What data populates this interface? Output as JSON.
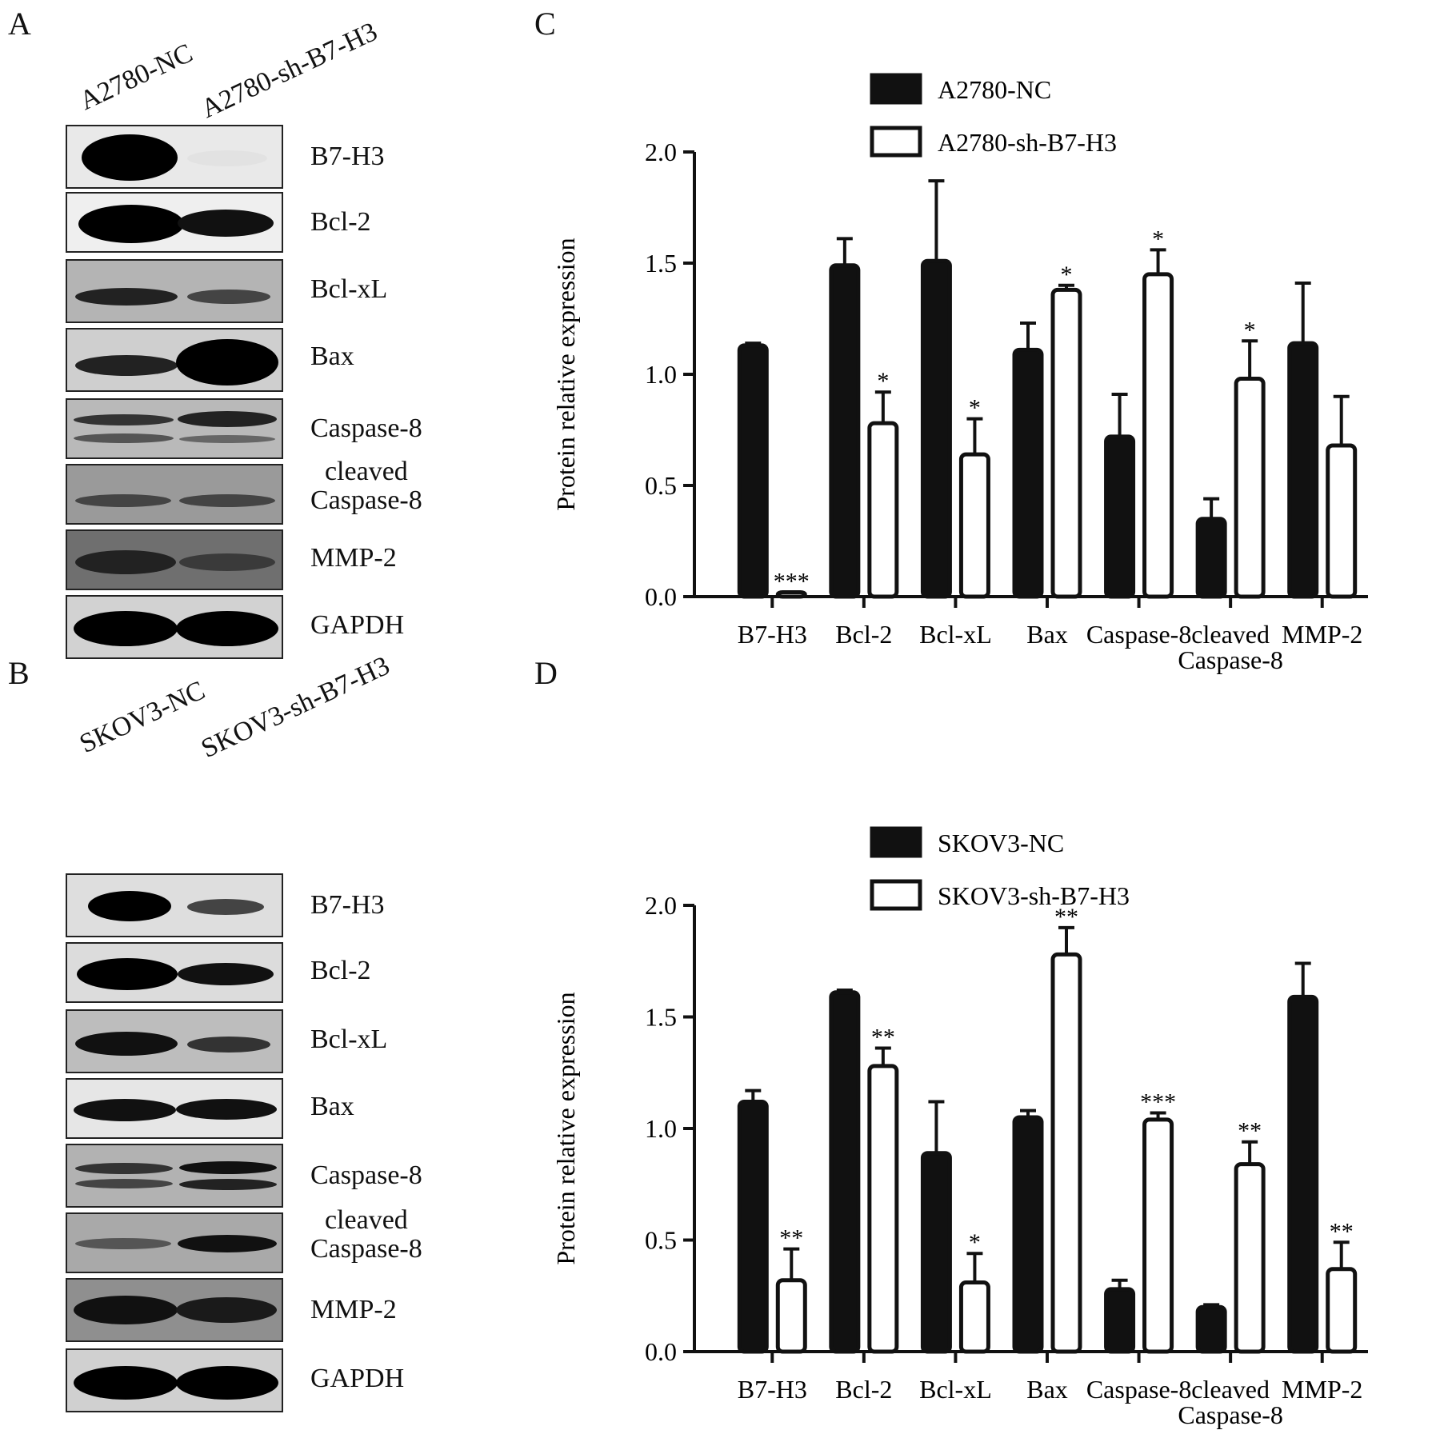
{
  "panels": {
    "A": {
      "letter": "A",
      "lanes": [
        "A2780-NC",
        "A2780-sh-B7-H3"
      ],
      "rows": [
        {
          "label": "B7-H3",
          "bg": "#e9e9e9"
        },
        {
          "label": "Bcl-2",
          "bg": "#efefef"
        },
        {
          "label": "Bcl-xL",
          "bg": "#b4b4b4"
        },
        {
          "label": "Bax",
          "bg": "#cfcfcf"
        },
        {
          "label": "Caspase-8",
          "bg": "#b9b9b9"
        },
        {
          "label": "cleaved\nCaspase-8",
          "bg": "#9a9a9a"
        },
        {
          "label": "MMP-2",
          "bg": "#6f6f6f"
        },
        {
          "label": "GAPDH",
          "bg": "#d2d2d2"
        }
      ]
    },
    "B": {
      "letter": "B",
      "lanes": [
        "SKOV3-NC",
        "SKOV3-sh-B7-H3"
      ],
      "rows": [
        {
          "label": "B7-H3",
          "bg": "#dedede"
        },
        {
          "label": "Bcl-2",
          "bg": "#dcdcdc"
        },
        {
          "label": "Bcl-xL",
          "bg": "#bdbdbd"
        },
        {
          "label": "Bax",
          "bg": "#e6e6e6"
        },
        {
          "label": "Caspase-8",
          "bg": "#b2b2b2"
        },
        {
          "label": "cleaved\nCaspase-8",
          "bg": "#a9a9a9"
        },
        {
          "label": "MMP-2",
          "bg": "#8f8f8f"
        },
        {
          "label": "GAPDH",
          "bg": "#d0d0d0"
        }
      ]
    }
  },
  "chart_data": [
    {
      "type": "bar",
      "panel": "C",
      "categories": [
        "B7-H3",
        "Bcl-2",
        "Bcl-xL",
        "Bax",
        "Caspase-8",
        "cleaved\nCaspase-8",
        "MMP-2"
      ],
      "series": [
        {
          "name": "A2780-NC",
          "fill": "#111111",
          "values": [
            1.13,
            1.49,
            1.51,
            1.11,
            0.72,
            0.35,
            1.14
          ],
          "errors": [
            0.01,
            0.12,
            0.36,
            0.12,
            0.19,
            0.09,
            0.27
          ],
          "sig": [
            "",
            "",
            "",
            "",
            "",
            "",
            ""
          ]
        },
        {
          "name": "A2780-sh-B7-H3",
          "fill": "#ffffff",
          "values": [
            0.02,
            0.78,
            0.64,
            1.38,
            1.45,
            0.98,
            0.68
          ],
          "errors": [
            0.0,
            0.14,
            0.16,
            0.02,
            0.11,
            0.17,
            0.22
          ],
          "sig": [
            "***",
            "*",
            "*",
            "*",
            "*",
            "*",
            ""
          ]
        }
      ],
      "ylabel": "Protein relative expression",
      "ylim": [
        0,
        2.0
      ],
      "yticks": [
        "0.0",
        "0.5",
        "1.0",
        "1.5",
        "2.0"
      ],
      "legend": "top"
    },
    {
      "type": "bar",
      "panel": "D",
      "categories": [
        "B7-H3",
        "Bcl-2",
        "Bcl-xL",
        "Bax",
        "Caspase-8",
        "cleaved\nCaspase-8",
        "MMP-2"
      ],
      "series": [
        {
          "name": "SKOV3-NC",
          "fill": "#111111",
          "values": [
            1.12,
            1.61,
            0.89,
            1.05,
            0.28,
            0.2,
            1.59
          ],
          "errors": [
            0.05,
            0.01,
            0.23,
            0.03,
            0.04,
            0.01,
            0.15
          ],
          "sig": [
            "",
            "",
            "",
            "",
            "",
            "",
            ""
          ]
        },
        {
          "name": "SKOV3-sh-B7-H3",
          "fill": "#ffffff",
          "values": [
            0.32,
            1.28,
            0.31,
            1.78,
            1.04,
            0.84,
            0.37
          ],
          "errors": [
            0.14,
            0.08,
            0.13,
            0.12,
            0.03,
            0.1,
            0.12
          ],
          "sig": [
            "**",
            "**",
            "*",
            "**",
            "***",
            "**",
            "**"
          ]
        }
      ],
      "ylabel": "Protein relative expression",
      "ylim": [
        0,
        2.0
      ],
      "yticks": [
        "0.0",
        "0.5",
        "1.0",
        "1.5",
        "2.0"
      ],
      "legend": "top"
    }
  ]
}
